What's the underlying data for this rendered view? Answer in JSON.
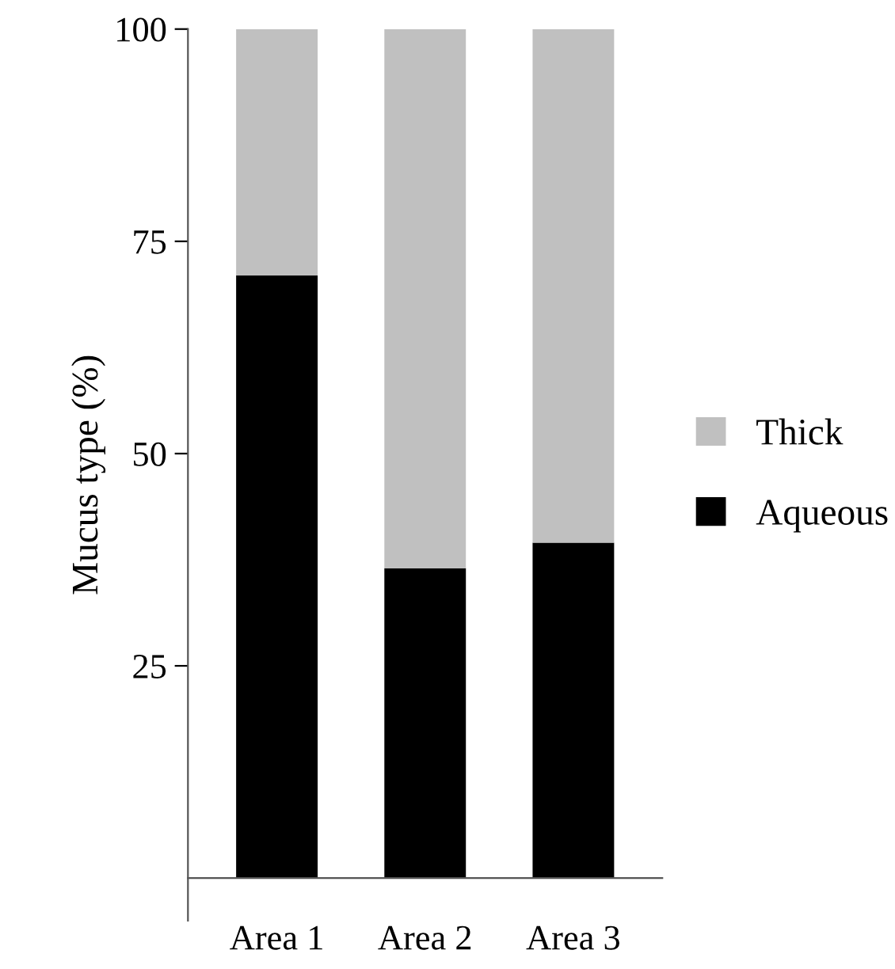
{
  "chart_data": {
    "type": "bar",
    "stacked": true,
    "ylabel": "Mucus type (%)",
    "categories": [
      "Area 1",
      "Area 2",
      "Area 3"
    ],
    "series": [
      {
        "name": "Aqueous",
        "color": "#000000",
        "values": [
          71,
          36.5,
          39.5
        ]
      },
      {
        "name": "Thick",
        "color": "#c0c0c0",
        "values": [
          29,
          63.5,
          60.5
        ]
      }
    ],
    "ylim": [
      -5,
      100
    ],
    "yticks": [
      25,
      50,
      75,
      100
    ],
    "grid": false,
    "legend": "right"
  }
}
